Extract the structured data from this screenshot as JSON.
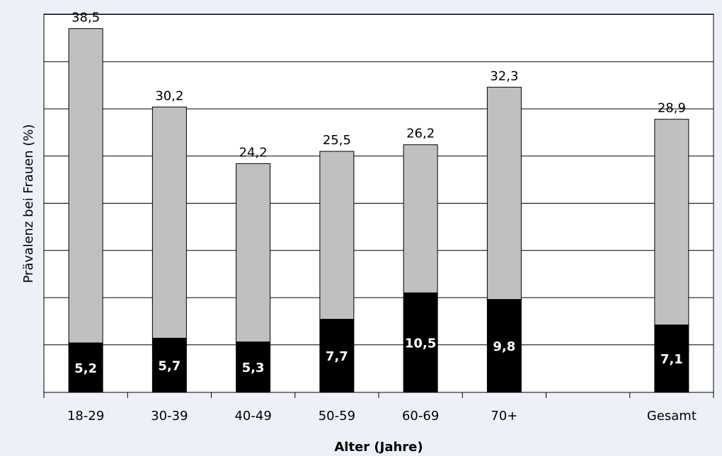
{
  "chart_data": {
    "type": "bar",
    "stacked": true,
    "xlabel": "Alter (Jahre)",
    "ylabel": "Prävalenz bei Frauen (%)",
    "ylim": [
      0,
      40
    ],
    "grid": true,
    "categories": [
      "18-29",
      "30-39",
      "40-49",
      "50-59",
      "60-69",
      "70+",
      "",
      "Gesamt"
    ],
    "series": [
      {
        "values": [
          5.2,
          5.7,
          5.3,
          7.7,
          10.5,
          9.8,
          null,
          7.1
        ],
        "labels": [
          "5,2",
          "5,7",
          "5,3",
          "7,7",
          "10,5",
          "9,8",
          "",
          "7,1"
        ],
        "color": "#000000"
      },
      {
        "values": [
          33.3,
          24.5,
          18.9,
          17.8,
          15.7,
          22.5,
          null,
          21.8
        ],
        "color": "#c0c0c0"
      }
    ],
    "totals": [
      38.5,
      30.2,
      24.2,
      25.5,
      26.2,
      32.3,
      null,
      28.9
    ],
    "total_labels": [
      "38,5",
      "30,2",
      "24,2",
      "25,5",
      "26,2",
      "32,3",
      "",
      "28,9"
    ],
    "colors": {
      "background": "#edf1f7",
      "plot_background": "#ffffff",
      "lower": "#000000",
      "upper": "#c0c0c0"
    }
  }
}
